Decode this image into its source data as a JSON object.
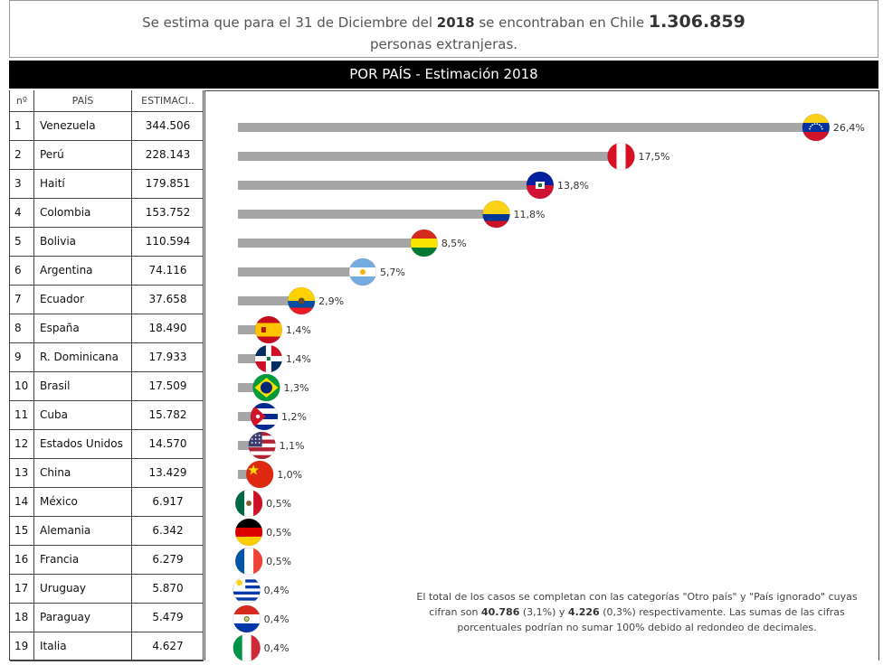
{
  "header": {
    "line1_pre": "Se estima que para el 31 de Diciembre del",
    "year": "2018",
    "line1_mid": "se encontraban en Chile",
    "total": "1.306.859",
    "line2": "personas extranjeras."
  },
  "title": "POR PAÍS - Estimación 2018",
  "table": {
    "col_num": "nº",
    "col_country": "PAÍS",
    "col_estimate": "ESTIMACI.."
  },
  "note": {
    "part1": "El total de los casos se completan con las categorías \"Otro país\" y \"País ignorado\" cuyas cifran son",
    "value1": "40.786",
    "pct1": "(3,1%)",
    "and": "y",
    "value2": "4.226",
    "pct2": "(0,3%)",
    "part2": "respectivamente. Las sumas de las cifras porcentuales podrían no sumar 100% debido al redondeo de decimales."
  },
  "colors": {
    "bar": "#a6a6a6",
    "title_bg": "#000000"
  },
  "chart_data": {
    "type": "bar",
    "orientation": "horizontal",
    "categories": [
      "Venezuela",
      "Perú",
      "Haití",
      "Colombia",
      "Bolivia",
      "Argentina",
      "Ecuador",
      "España",
      "R. Dominicana",
      "Brasil",
      "Cuba",
      "Estados Unidos",
      "China",
      "México",
      "Alemania",
      "Francia",
      "Uruguay",
      "Paraguay",
      "Italia"
    ],
    "ranks": [
      "1",
      "2",
      "3",
      "4",
      "5",
      "6",
      "7",
      "8",
      "9",
      "10",
      "11",
      "12",
      "13",
      "14",
      "15",
      "16",
      "17",
      "18",
      "19"
    ],
    "estimates": [
      "344.506",
      "228.143",
      "179.851",
      "153.752",
      "110.594",
      "74.116",
      "37.658",
      "18.490",
      "17.933",
      "17.509",
      "15.782",
      "14.570",
      "13.429",
      "6.917",
      "6.342",
      "6.279",
      "5.870",
      "5.479",
      "4.627"
    ],
    "values": [
      26.4,
      17.5,
      13.8,
      11.8,
      8.5,
      5.7,
      2.9,
      1.4,
      1.4,
      1.3,
      1.2,
      1.1,
      1.0,
      0.5,
      0.5,
      0.5,
      0.4,
      0.4,
      0.4
    ],
    "value_labels": [
      "26,4%",
      "17,5%",
      "13,8%",
      "11,8%",
      "8,5%",
      "5,7%",
      "2,9%",
      "1,4%",
      "1,4%",
      "1,3%",
      "1,2%",
      "1,1%",
      "1,0%",
      "0,5%",
      "0,5%",
      "0,5%",
      "0,4%",
      "0,4%",
      "0,4%"
    ],
    "flags": [
      "venezuela-flag",
      "peru-flag",
      "haiti-flag",
      "colombia-flag",
      "bolivia-flag",
      "argentina-flag",
      "ecuador-flag",
      "spain-flag",
      "dominican-republic-flag",
      "brazil-flag",
      "cuba-flag",
      "usa-flag",
      "china-flag",
      "mexico-flag",
      "germany-flag",
      "france-flag",
      "uruguay-flag",
      "paraguay-flag",
      "italy-flag"
    ],
    "grid": false
  }
}
